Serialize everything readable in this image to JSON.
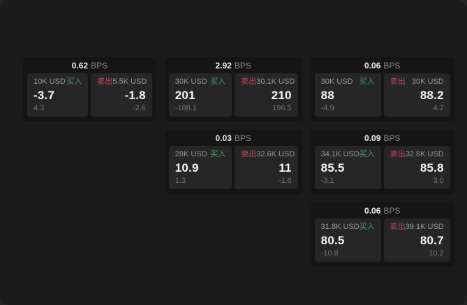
{
  "colors": {
    "backdrop": "#242424",
    "window_bg": "#1b1b1b",
    "card_bg": "#151515",
    "panel_bg": "#262626",
    "buy_green": "#46a06b",
    "sell_red": "#c4485f",
    "value_white": "#f5f5f5",
    "label_gray": "#9a9a9a",
    "sub_gray": "#757575"
  },
  "labels": {
    "bps_suffix": "BPS",
    "buy": "买入",
    "sell": "卖出"
  },
  "cards": [
    {
      "col": 1,
      "row": 1,
      "bps": "0.62",
      "buy": {
        "notional": "10K USD",
        "value": "-3.7",
        "sub": "4.3"
      },
      "sell": {
        "notional": "5.5K USD",
        "value": "-1.8",
        "sub": "-2.6"
      }
    },
    {
      "col": 2,
      "row": 1,
      "bps": "2.92",
      "buy": {
        "notional": "30K USD",
        "value": "201",
        "sub": "-188.1"
      },
      "sell": {
        "notional": "30.1K USD",
        "value": "210",
        "sub": "196.5"
      }
    },
    {
      "col": 3,
      "row": 1,
      "bps": "0.06",
      "buy": {
        "notional": "30K USD",
        "value": "88",
        "sub": "-4.9"
      },
      "sell": {
        "notional": "30K USD",
        "value": "88.2",
        "sub": "4.7"
      }
    },
    {
      "col": 2,
      "row": 2,
      "bps": "0.03",
      "buy": {
        "notional": "28K USD",
        "value": "10.9",
        "sub": "1.3"
      },
      "sell": {
        "notional": "32.6K USD",
        "value": "11",
        "sub": "-1.8"
      }
    },
    {
      "col": 3,
      "row": 2,
      "bps": "0.09",
      "buy": {
        "notional": "34.1K USD",
        "value": "85.5",
        "sub": "-3.1"
      },
      "sell": {
        "notional": "32.8K USD",
        "value": "85.8",
        "sub": "3.0"
      }
    },
    {
      "col": 3,
      "row": 3,
      "bps": "0.06",
      "buy": {
        "notional": "31.8K USD",
        "value": "80.5",
        "sub": "-10.8"
      },
      "sell": {
        "notional": "39.1K USD",
        "value": "80.7",
        "sub": "10.2"
      }
    }
  ]
}
